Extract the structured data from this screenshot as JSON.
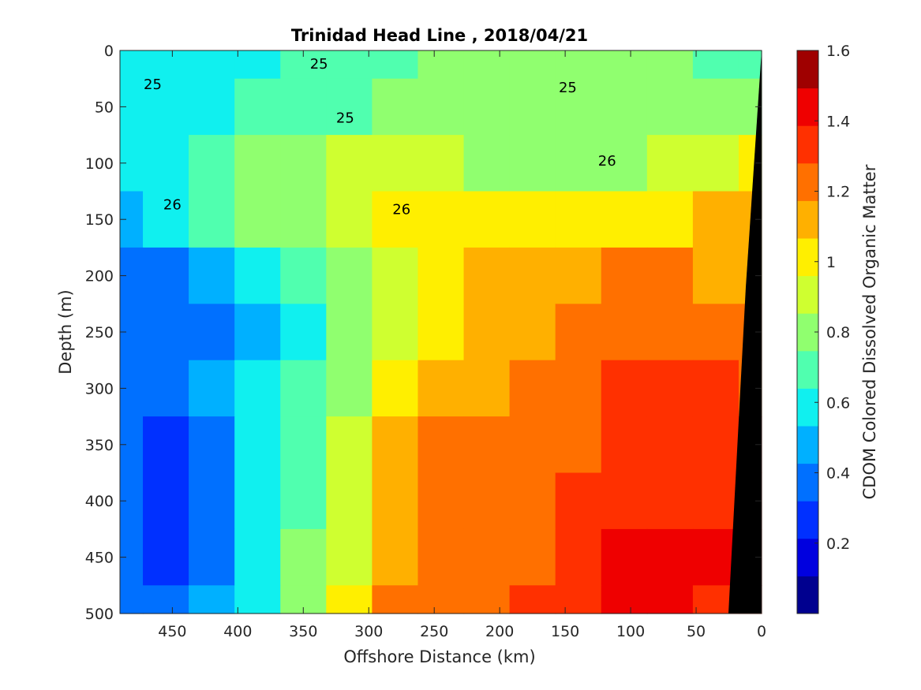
{
  "chart_data": {
    "type": "heatmap",
    "title": "Trinidad Head Line , 2018/04/21",
    "xlabel": "Offshore Distance (km)",
    "ylabel": "Depth (m)",
    "colorbar_label": "CDOM Colored Dissolved Organic Matter",
    "xlim": [
      490,
      0
    ],
    "ylim": [
      0,
      500
    ],
    "x_reversed": true,
    "y_reversed": true,
    "x_ticks": [
      "450",
      "400",
      "350",
      "300",
      "250",
      "200",
      "150",
      "100",
      "50",
      "0"
    ],
    "x_tick_values": [
      450,
      400,
      350,
      300,
      250,
      200,
      150,
      100,
      50,
      0
    ],
    "y_ticks": [
      "0",
      "50",
      "100",
      "150",
      "200",
      "250",
      "300",
      "350",
      "400",
      "450",
      "500"
    ],
    "y_tick_values": [
      0,
      50,
      100,
      150,
      200,
      250,
      300,
      350,
      400,
      450,
      500
    ],
    "colorbar_ticks": [
      "0.2",
      "0.4",
      "0.6",
      "0.8",
      "1",
      "1.2",
      "1.4",
      "1.6"
    ],
    "colorbar_tick_values": [
      0.2,
      0.4,
      0.6,
      0.8,
      1.0,
      1.2,
      1.4,
      1.6
    ],
    "clim": [
      0,
      1.6
    ],
    "colormap": [
      "#00008f",
      "#0000df",
      "#0030ff",
      "#0070ff",
      "#00b0ff",
      "#10f0ef",
      "#50ffaf",
      "#90ff6f",
      "#cfff30",
      "#ffef00",
      "#ffb000",
      "#ff7000",
      "#ff3000",
      "#ef0000",
      "#9f0000"
    ],
    "grid": false,
    "x_axis": [
      490,
      455,
      420,
      385,
      350,
      315,
      280,
      245,
      210,
      175,
      140,
      105,
      70,
      35,
      0
    ],
    "y_axis": [
      0,
      50,
      100,
      150,
      200,
      250,
      300,
      350,
      400,
      450,
      500
    ],
    "z_values": [
      [
        0.55,
        0.55,
        0.6,
        0.62,
        0.65,
        0.68,
        0.72,
        0.75,
        0.78,
        0.8,
        0.78,
        0.78,
        0.78,
        0.7,
        0.65
      ],
      [
        0.55,
        0.58,
        0.62,
        0.68,
        0.7,
        0.72,
        0.75,
        0.78,
        0.8,
        0.82,
        0.8,
        0.8,
        0.8,
        0.78,
        0.75
      ],
      [
        0.6,
        0.62,
        0.65,
        0.75,
        0.85,
        0.9,
        0.9,
        0.88,
        0.85,
        0.85,
        0.85,
        0.85,
        0.9,
        0.95,
        1.0
      ],
      [
        0.45,
        0.55,
        0.65,
        0.75,
        0.85,
        0.95,
        1.0,
        1.0,
        1.0,
        1.0,
        1.05,
        1.05,
        1.05,
        1.08,
        1.1
      ],
      [
        0.4,
        0.4,
        0.5,
        0.55,
        0.65,
        0.8,
        0.95,
        1.05,
        1.1,
        1.1,
        1.15,
        1.2,
        1.2,
        1.15,
        1.15
      ],
      [
        0.35,
        0.35,
        0.4,
        0.5,
        0.6,
        0.75,
        0.95,
        1.05,
        1.1,
        1.15,
        1.2,
        1.25,
        1.25,
        1.25,
        1.2
      ],
      [
        0.35,
        0.35,
        0.45,
        0.55,
        0.65,
        0.8,
        1.0,
        1.1,
        1.15,
        1.2,
        1.25,
        1.3,
        1.3,
        1.3,
        1.25
      ],
      [
        0.35,
        0.3,
        0.4,
        0.55,
        0.7,
        0.9,
        1.1,
        1.2,
        1.2,
        1.25,
        1.25,
        1.3,
        1.35,
        1.35,
        1.3
      ],
      [
        0.35,
        0.3,
        0.4,
        0.55,
        0.7,
        0.95,
        1.15,
        1.2,
        1.2,
        1.25,
        1.3,
        1.35,
        1.35,
        1.35,
        1.35
      ],
      [
        0.35,
        0.3,
        0.4,
        0.55,
        0.75,
        0.95,
        1.15,
        1.2,
        1.25,
        1.25,
        1.3,
        1.4,
        1.4,
        1.4,
        1.35
      ],
      [
        0.4,
        0.35,
        0.45,
        0.55,
        0.75,
        1.0,
        1.2,
        1.25,
        1.25,
        1.3,
        1.3,
        1.4,
        1.4,
        1.35,
        1.35
      ]
    ],
    "contour_labels": [
      {
        "text": "25",
        "x": 465,
        "y": 30
      },
      {
        "text": "25",
        "x": 318,
        "y": 60
      },
      {
        "text": "25",
        "x": 338,
        "y": 12
      },
      {
        "text": "25",
        "x": 148,
        "y": 33
      },
      {
        "text": "26",
        "x": 450,
        "y": 137
      },
      {
        "text": "26",
        "x": 275,
        "y": 141
      },
      {
        "text": "26",
        "x": 118,
        "y": 98
      }
    ]
  }
}
